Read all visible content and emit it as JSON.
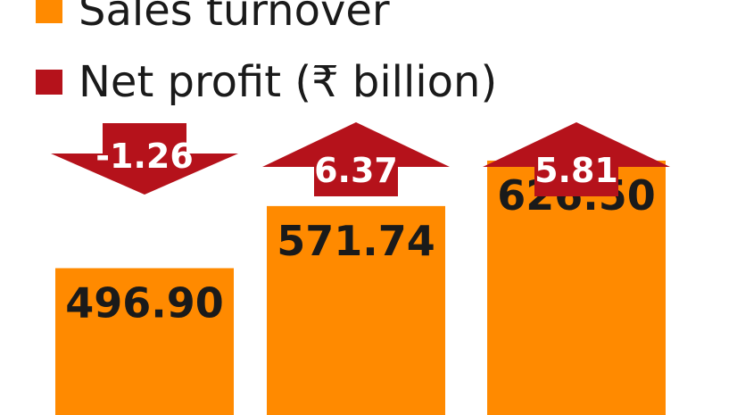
{
  "legend": {
    "sales_label": "Sales turnover",
    "profit_label": "Net profit (₹ billion)"
  },
  "colors": {
    "sales": "#FF8A00",
    "profit": "#B5121B",
    "text": "#1a1a1a",
    "profit_text": "#ffffff"
  },
  "chart_data": {
    "type": "bar",
    "categories": [
      "",
      "",
      ""
    ],
    "series": [
      {
        "name": "Sales turnover",
        "values": [
          496.9,
          571.74,
          626.5
        ],
        "labels": [
          "496.90",
          "571.74",
          "626.50"
        ]
      },
      {
        "name": "Net profit (₹ billion)",
        "values": [
          -1.26,
          6.37,
          5.81
        ],
        "labels": [
          "-1.26",
          "6.37",
          "5.81"
        ]
      }
    ],
    "ylim": [
      0,
      700
    ],
    "grid": false,
    "legend_position": "top-left"
  }
}
